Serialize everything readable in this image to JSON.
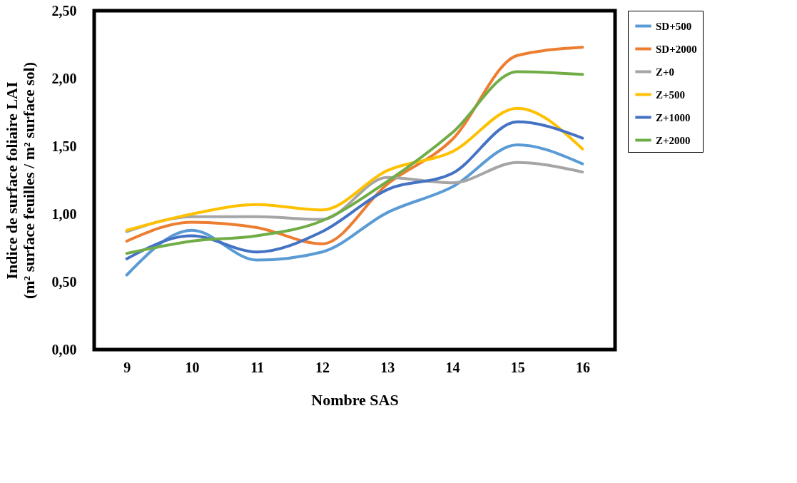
{
  "chart_data": {
    "type": "line",
    "xlabel": "Nombre SAS",
    "ylabel": "Indice de surface foliaire LAI\n(m² surface feuilles / m² surface sol)",
    "categories": [
      "9",
      "10",
      "11",
      "12",
      "13",
      "14",
      "15",
      "16"
    ],
    "series": [
      {
        "name": "SD+500",
        "color": "#5b9bd5",
        "values": [
          0.55,
          0.88,
          0.66,
          0.72,
          1.01,
          1.2,
          1.51,
          1.37
        ]
      },
      {
        "name": "SD+2000",
        "color": "#ed7d31",
        "values": [
          0.8,
          0.94,
          0.9,
          0.78,
          1.22,
          1.55,
          2.17,
          2.23
        ]
      },
      {
        "name": "Z+0",
        "color": "#a5a5a5",
        "values": [
          0.87,
          0.98,
          0.98,
          0.96,
          1.27,
          1.23,
          1.38,
          1.31
        ]
      },
      {
        "name": "Z+500",
        "color": "#ffc000",
        "values": [
          0.88,
          1.0,
          1.07,
          1.03,
          1.32,
          1.46,
          1.78,
          1.48
        ]
      },
      {
        "name": "Z+1000",
        "color": "#4472c4",
        "values": [
          0.67,
          0.84,
          0.72,
          0.87,
          1.18,
          1.3,
          1.68,
          1.56
        ]
      },
      {
        "name": "Z+2000",
        "color": "#70ad47",
        "values": [
          0.71,
          0.8,
          0.84,
          0.95,
          1.24,
          1.6,
          2.05,
          2.03
        ]
      }
    ],
    "ylim": [
      0,
      2.5
    ],
    "yticks": [
      {
        "value": 0,
        "label": "0,00"
      },
      {
        "value": 0.5,
        "label": "0,50"
      },
      {
        "value": 1,
        "label": "1,00"
      },
      {
        "value": 1.5,
        "label": "1,50"
      },
      {
        "value": 2,
        "label": "2,00"
      },
      {
        "value": 2.5,
        "label": "2,50"
      }
    ],
    "grid": false,
    "legend": "right",
    "marker": "none",
    "line_style": "solid"
  }
}
